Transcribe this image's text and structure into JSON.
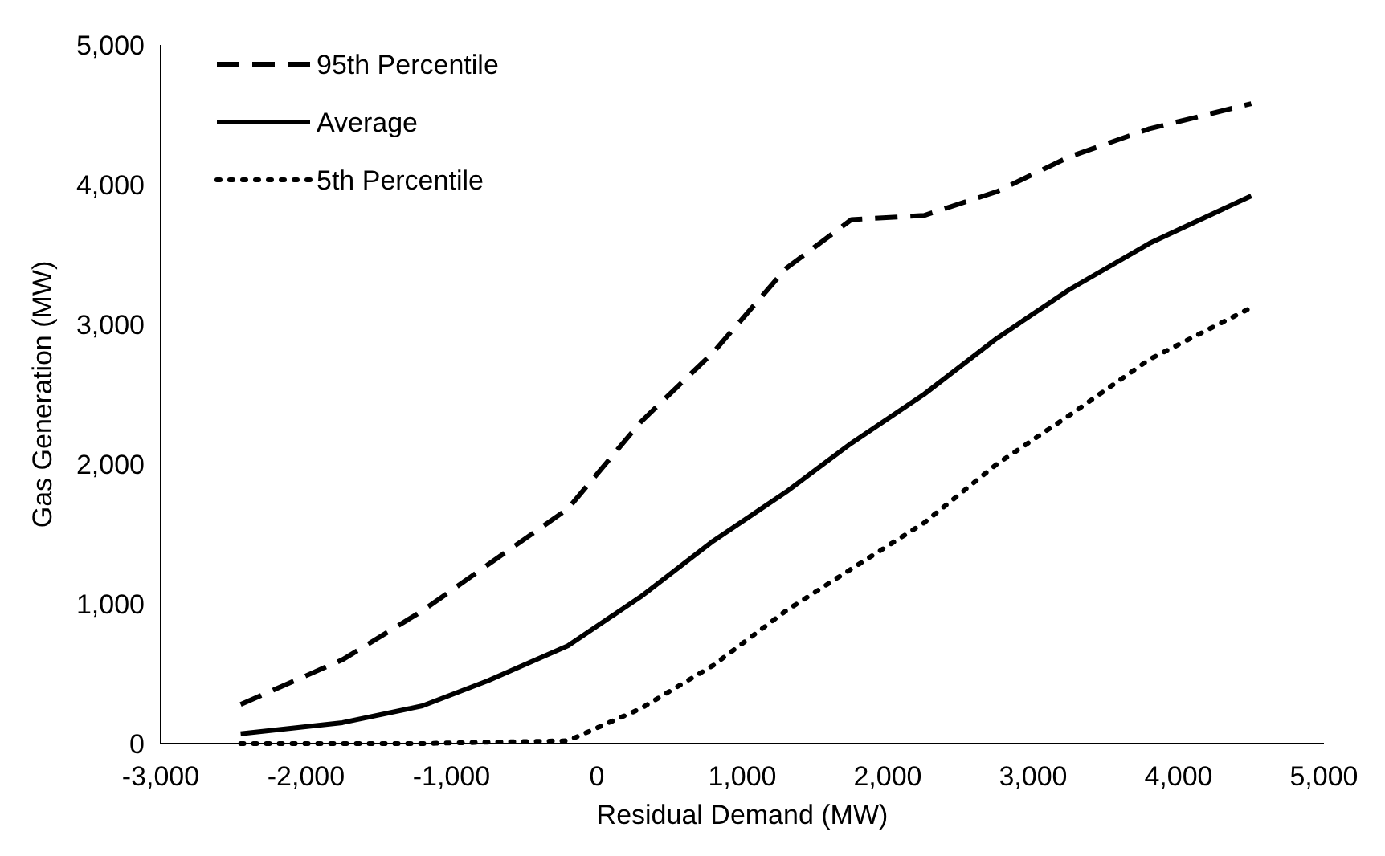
{
  "chart_data": {
    "type": "line",
    "xlabel": "Residual Demand (MW)",
    "ylabel": "Gas Generation (MW)",
    "x": [
      -2450,
      -1750,
      -1200,
      -750,
      -200,
      300,
      800,
      1300,
      1750,
      2250,
      2750,
      3250,
      3800,
      4500
    ],
    "series": [
      {
        "name": "95th Percentile",
        "color": "#000000",
        "line_style": "dashed",
        "values": [
          280,
          600,
          950,
          1280,
          1680,
          2300,
          2800,
          3400,
          3750,
          3780,
          3950,
          4200,
          4400,
          4580
        ]
      },
      {
        "name": "Average",
        "color": "#000000",
        "line_style": "solid",
        "values": [
          70,
          150,
          270,
          450,
          700,
          1050,
          1450,
          1800,
          2150,
          2500,
          2900,
          3250,
          3580,
          3920
        ]
      },
      {
        "name": "5th Percentile",
        "color": "#000000",
        "line_style": "dotted",
        "values": [
          0,
          0,
          0,
          10,
          20,
          250,
          560,
          950,
          1250,
          1580,
          2000,
          2350,
          2750,
          3120
        ]
      }
    ],
    "xlim": [
      -3000,
      5000
    ],
    "xticks": [
      {
        "value": -3000,
        "label": "-3,000"
      },
      {
        "value": -2000,
        "label": "-2,000"
      },
      {
        "value": -1000,
        "label": "-1,000"
      },
      0,
      {
        "value": 1000,
        "label": "1,000"
      },
      {
        "value": 2000,
        "label": "2,000"
      },
      {
        "value": 3000,
        "label": "3,000"
      },
      {
        "value": 4000,
        "label": "4,000"
      },
      {
        "value": 5000,
        "label": "5,000"
      }
    ],
    "ylim": [
      0,
      5000
    ],
    "yticks": [
      0,
      {
        "value": 1000,
        "label": "1,000"
      },
      {
        "value": 2000,
        "label": "2,000"
      },
      {
        "value": 3000,
        "label": "3,000"
      },
      {
        "value": 4000,
        "label": "4,000"
      },
      {
        "value": 5000,
        "label": "5,000"
      }
    ],
    "grid": false,
    "legend": "top left",
    "marker": "none"
  }
}
